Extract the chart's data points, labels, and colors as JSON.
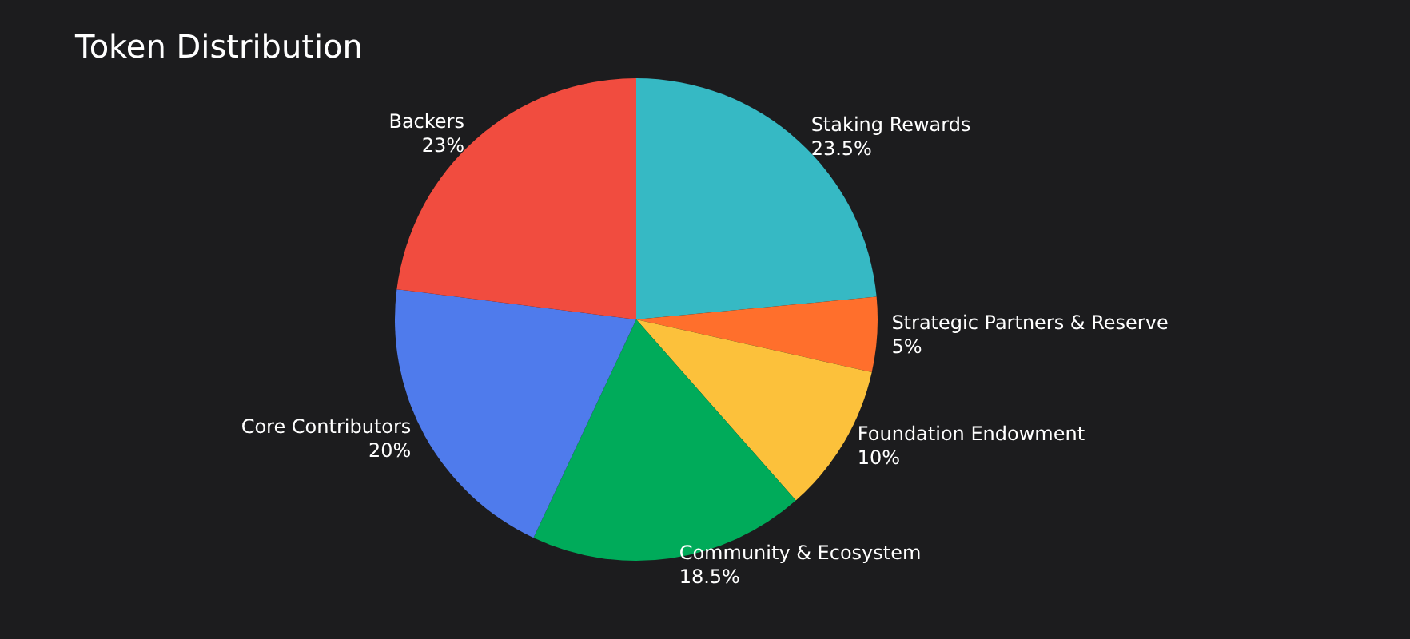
{
  "chart_data": {
    "type": "pie",
    "title": "Token Distribution",
    "categories": [
      "Staking Rewards",
      "Strategic Partners & Reserve",
      "Foundation Endowment",
      "Community & Ecosystem",
      "Core Contributors",
      "Backers"
    ],
    "values": [
      23.5,
      5,
      10,
      18.5,
      20,
      23
    ],
    "colors": [
      "#36b9c4",
      "#ff6f2c",
      "#fcc13b",
      "#00ab5a",
      "#4f7bec",
      "#f14c3f"
    ],
    "value_labels": [
      "23.5%",
      "5%",
      "10%",
      "18.5%",
      "20%",
      "23%"
    ],
    "legend": false
  }
}
